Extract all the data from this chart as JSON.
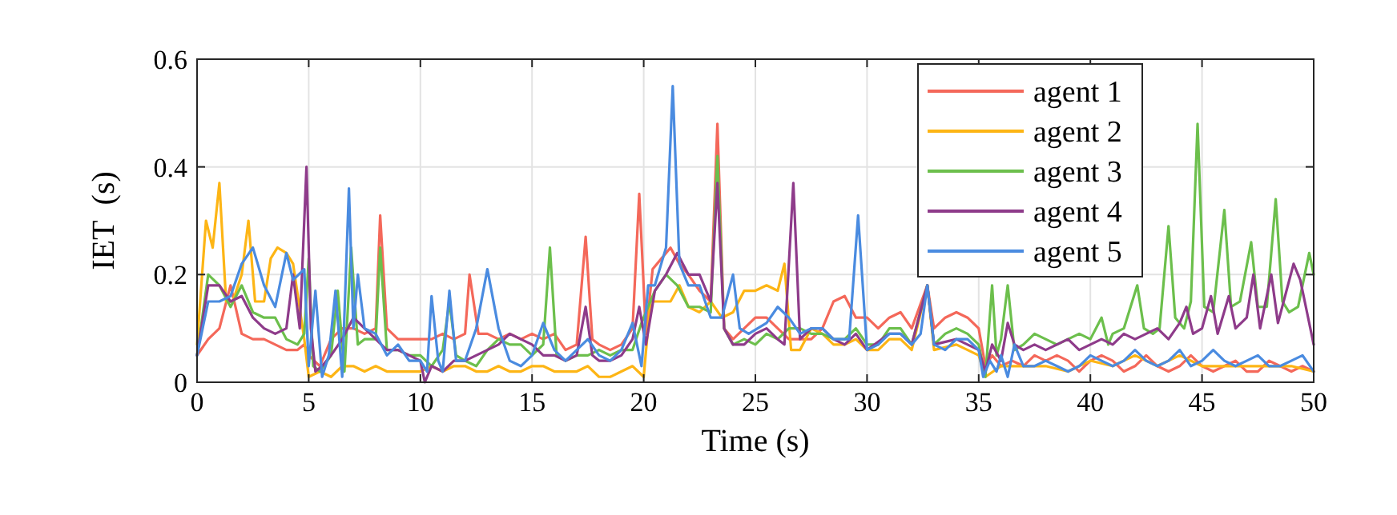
{
  "chart_data": {
    "type": "line",
    "xlabel": "Time (s)",
    "ylabel": "IET  (s)",
    "xlim": [
      0,
      50
    ],
    "ylim": [
      0,
      0.6
    ],
    "xticks": [
      0,
      5,
      10,
      15,
      20,
      25,
      30,
      35,
      40,
      45,
      50
    ],
    "yticks": [
      0,
      0.2,
      0.4,
      0.6
    ],
    "grid": true,
    "legend": "top right",
    "line_style": "solid",
    "marker": "none",
    "series": [
      {
        "name": "agent 1",
        "color": "#f4685a",
        "x": [
          0,
          0.5,
          1,
          1.5,
          2,
          2.5,
          3,
          3.5,
          4,
          4.5,
          4.8,
          5,
          5.5,
          6,
          6.5,
          7,
          7.5,
          8,
          8.2,
          8.5,
          9,
          9.5,
          10,
          10.5,
          11,
          11.5,
          12,
          12.2,
          12.6,
          13,
          13.5,
          14,
          14.5,
          15,
          15.5,
          16,
          16.5,
          17,
          17.4,
          17.7,
          18,
          18.5,
          19,
          19.5,
          19.8,
          20.1,
          20.4,
          20.8,
          21.2,
          21.6,
          22,
          22.5,
          23,
          23.3,
          23.6,
          24,
          24.5,
          25,
          25.5,
          26,
          26.5,
          27,
          27.5,
          28,
          28.5,
          29,
          29.5,
          30,
          30.5,
          31,
          31.5,
          32,
          32.7,
          33,
          33.5,
          34,
          34.5,
          35,
          35.3,
          35.6,
          36,
          36.5,
          37,
          37.5,
          38,
          38.5,
          39,
          39.5,
          40,
          40.5,
          41,
          41.5,
          42,
          42.5,
          43,
          43.5,
          44,
          44.5,
          45,
          45.5,
          46,
          46.5,
          47,
          47.5,
          48,
          48.5,
          49,
          49.5,
          50
        ],
        "values": [
          0.05,
          0.08,
          0.1,
          0.18,
          0.09,
          0.08,
          0.08,
          0.07,
          0.06,
          0.06,
          0.07,
          0.05,
          0.03,
          0.08,
          0.1,
          0.1,
          0.09,
          0.1,
          0.31,
          0.1,
          0.08,
          0.08,
          0.08,
          0.08,
          0.09,
          0.08,
          0.09,
          0.2,
          0.09,
          0.09,
          0.08,
          0.09,
          0.08,
          0.09,
          0.08,
          0.09,
          0.06,
          0.07,
          0.27,
          0.08,
          0.07,
          0.06,
          0.07,
          0.1,
          0.35,
          0.09,
          0.21,
          0.23,
          0.25,
          0.22,
          0.2,
          0.17,
          0.15,
          0.48,
          0.1,
          0.08,
          0.1,
          0.12,
          0.12,
          0.1,
          0.08,
          0.08,
          0.08,
          0.1,
          0.15,
          0.16,
          0.12,
          0.12,
          0.1,
          0.12,
          0.13,
          0.1,
          0.18,
          0.1,
          0.12,
          0.13,
          0.12,
          0.1,
          0.03,
          0.05,
          0.03,
          0.04,
          0.03,
          0.05,
          0.04,
          0.05,
          0.04,
          0.02,
          0.04,
          0.05,
          0.04,
          0.02,
          0.03,
          0.05,
          0.03,
          0.02,
          0.03,
          0.05,
          0.03,
          0.02,
          0.03,
          0.04,
          0.02,
          0.02,
          0.04,
          0.03,
          0.02,
          0.03,
          0.02
        ]
      },
      {
        "name": "agent 2",
        "color": "#fdb515",
        "x": [
          0,
          0.4,
          0.7,
          1,
          1.3,
          1.6,
          2,
          2.3,
          2.6,
          3,
          3.3,
          3.6,
          4,
          4.3,
          4.8,
          5,
          5.5,
          6,
          6.5,
          7,
          7.5,
          8,
          8.5,
          9,
          9.5,
          10,
          10.5,
          11,
          11.5,
          12,
          12.5,
          13,
          13.5,
          14,
          14.5,
          15,
          15.5,
          16,
          16.5,
          17,
          17.5,
          18,
          18.5,
          19,
          19.5,
          20,
          20.3,
          20.8,
          21.2,
          21.6,
          22,
          22.5,
          23,
          23.5,
          24,
          24.5,
          25,
          25.5,
          26,
          26.3,
          26.6,
          27,
          27.5,
          28,
          28.5,
          29,
          29.5,
          30,
          30.5,
          31,
          31.5,
          32,
          32.7,
          33,
          34,
          35,
          35.3,
          36,
          37,
          38,
          39,
          40,
          41,
          42,
          43,
          44,
          45,
          46,
          47,
          48,
          49,
          50
        ],
        "values": [
          0.07,
          0.3,
          0.25,
          0.37,
          0.15,
          0.15,
          0.2,
          0.3,
          0.15,
          0.15,
          0.23,
          0.25,
          0.24,
          0.22,
          0.08,
          0.01,
          0.02,
          0.01,
          0.03,
          0.03,
          0.02,
          0.03,
          0.02,
          0.02,
          0.02,
          0.02,
          0.03,
          0.02,
          0.03,
          0.03,
          0.02,
          0.02,
          0.03,
          0.02,
          0.02,
          0.03,
          0.03,
          0.02,
          0.02,
          0.02,
          0.03,
          0.01,
          0.01,
          0.02,
          0.03,
          0.01,
          0.15,
          0.15,
          0.15,
          0.18,
          0.14,
          0.13,
          0.15,
          0.12,
          0.13,
          0.17,
          0.17,
          0.18,
          0.17,
          0.22,
          0.06,
          0.06,
          0.1,
          0.09,
          0.07,
          0.07,
          0.08,
          0.06,
          0.06,
          0.08,
          0.08,
          0.06,
          0.18,
          0.06,
          0.07,
          0.05,
          0.01,
          0.03,
          0.03,
          0.03,
          0.02,
          0.04,
          0.03,
          0.05,
          0.03,
          0.05,
          0.03,
          0.03,
          0.03,
          0.03,
          0.03,
          0.02
        ]
      },
      {
        "name": "agent 3",
        "color": "#6cbf4c",
        "x": [
          0,
          0.5,
          1,
          1.5,
          2,
          2.5,
          3,
          3.5,
          4,
          4.5,
          4.8,
          5,
          5.2,
          5.5,
          6,
          6.3,
          6.6,
          6.9,
          7.2,
          7.5,
          8,
          8.2,
          8.5,
          9,
          9.5,
          10,
          10.5,
          11,
          11.3,
          11.6,
          12,
          12.5,
          13,
          13.5,
          14,
          14.5,
          15,
          15.5,
          15.8,
          16.1,
          16.5,
          17,
          17.5,
          18,
          18.5,
          19,
          19.5,
          19.9,
          20.2,
          20.5,
          21,
          21.5,
          22,
          22.5,
          23,
          23.3,
          23.6,
          24,
          24.5,
          25,
          25.5,
          26,
          26.5,
          27,
          27.5,
          28,
          28.5,
          29,
          29.5,
          30,
          30.5,
          31,
          31.5,
          32,
          32.7,
          33,
          33.5,
          34,
          34.5,
          35,
          35.3,
          35.6,
          35.8,
          36,
          36.3,
          36.6,
          37,
          37.5,
          38,
          38.5,
          39,
          39.5,
          40,
          40.5,
          40.8,
          41,
          41.5,
          42.1,
          42.4,
          42.8,
          43.1,
          43.5,
          43.8,
          44.2,
          44.5,
          44.8,
          45.1,
          45.5,
          46,
          46.3,
          46.7,
          47.2,
          47.5,
          47.9,
          48.3,
          48.6,
          48.9,
          49.3,
          49.8,
          50
        ],
        "values": [
          0.05,
          0.2,
          0.18,
          0.14,
          0.18,
          0.13,
          0.12,
          0.12,
          0.08,
          0.07,
          0.09,
          0.23,
          0.03,
          0.02,
          0.05,
          0.17,
          0.02,
          0.25,
          0.07,
          0.08,
          0.08,
          0.25,
          0.06,
          0.06,
          0.05,
          0.05,
          0.03,
          0.06,
          0.15,
          0.05,
          0.04,
          0.03,
          0.06,
          0.08,
          0.07,
          0.07,
          0.05,
          0.07,
          0.25,
          0.05,
          0.04,
          0.05,
          0.05,
          0.06,
          0.05,
          0.06,
          0.06,
          0.11,
          0.14,
          0.17,
          0.2,
          0.18,
          0.14,
          0.14,
          0.13,
          0.42,
          0.1,
          0.07,
          0.08,
          0.07,
          0.09,
          0.08,
          0.1,
          0.1,
          0.09,
          0.09,
          0.08,
          0.08,
          0.1,
          0.07,
          0.07,
          0.1,
          0.1,
          0.07,
          0.18,
          0.07,
          0.09,
          0.1,
          0.09,
          0.07,
          0.01,
          0.18,
          0.05,
          0.08,
          0.18,
          0.06,
          0.07,
          0.09,
          0.08,
          0.07,
          0.08,
          0.09,
          0.08,
          0.12,
          0.07,
          0.09,
          0.1,
          0.18,
          0.1,
          0.09,
          0.1,
          0.29,
          0.12,
          0.1,
          0.15,
          0.48,
          0.14,
          0.13,
          0.32,
          0.14,
          0.15,
          0.26,
          0.14,
          0.14,
          0.34,
          0.15,
          0.13,
          0.14,
          0.24,
          0.2
        ]
      },
      {
        "name": "agent 4",
        "color": "#8e3b8a",
        "x": [
          0,
          0.5,
          1,
          1.5,
          2,
          2.5,
          3,
          3.5,
          4,
          4.3,
          4.6,
          4.9,
          5.1,
          5.3,
          5.6,
          6,
          6.5,
          7,
          7.5,
          8,
          8.5,
          9,
          9.5,
          10,
          10.2,
          10.5,
          11,
          11.5,
          12,
          12.5,
          13,
          13.5,
          14,
          14.5,
          15,
          15.5,
          16,
          16.5,
          17,
          17.4,
          17.7,
          18,
          18.5,
          19,
          19.5,
          19.8,
          20.1,
          20.5,
          21,
          21.5,
          22,
          22.5,
          23,
          23.3,
          23.6,
          24,
          24.5,
          25,
          25.5,
          26,
          26.3,
          26.7,
          27,
          27.5,
          28,
          28.5,
          29,
          29.5,
          30,
          31,
          31.5,
          32,
          32.7,
          33,
          34,
          35,
          35.3,
          35.6,
          36,
          36.3,
          36.6,
          37,
          37.5,
          38,
          38.5,
          39,
          39.5,
          40,
          40.5,
          41,
          41.5,
          42,
          42.5,
          43,
          43.5,
          44,
          44.3,
          44.6,
          45,
          45.4,
          45.7,
          46.2,
          46.5,
          47,
          47.3,
          47.6,
          48.1,
          48.4,
          49.1,
          49.4,
          49.7,
          50
        ],
        "values": [
          0.05,
          0.18,
          0.18,
          0.15,
          0.16,
          0.12,
          0.1,
          0.09,
          0.1,
          0.2,
          0.1,
          0.4,
          0.1,
          0.02,
          0.03,
          0.05,
          0.08,
          0.12,
          0.1,
          0.08,
          0.06,
          0.06,
          0.05,
          0.04,
          0,
          0.03,
          0.02,
          0.04,
          0.04,
          0.05,
          0.06,
          0.07,
          0.09,
          0.08,
          0.07,
          0.05,
          0.05,
          0.04,
          0.05,
          0.14,
          0.05,
          0.04,
          0.04,
          0.05,
          0.08,
          0.14,
          0.07,
          0.17,
          0.2,
          0.24,
          0.2,
          0.2,
          0.15,
          0.37,
          0.1,
          0.07,
          0.07,
          0.09,
          0.1,
          0.08,
          0.07,
          0.37,
          0.08,
          0.1,
          0.1,
          0.08,
          0.07,
          0.09,
          0.06,
          0.09,
          0.09,
          0.07,
          0.18,
          0.07,
          0.08,
          0.06,
          0.02,
          0.07,
          0.04,
          0.11,
          0.07,
          0.06,
          0.07,
          0.06,
          0.07,
          0.08,
          0.06,
          0.07,
          0.08,
          0.07,
          0.09,
          0.08,
          0.09,
          0.1,
          0.08,
          0.11,
          0.14,
          0.09,
          0.1,
          0.16,
          0.09,
          0.16,
          0.1,
          0.12,
          0.2,
          0.1,
          0.2,
          0.11,
          0.22,
          0.19,
          0.13,
          0.07
        ]
      },
      {
        "name": "agent 5",
        "color": "#4a8be0",
        "x": [
          0,
          0.5,
          1,
          1.5,
          2,
          2.5,
          3,
          3.5,
          4,
          4.3,
          4.8,
          5,
          5.3,
          5.6,
          5.9,
          6.2,
          6.5,
          6.8,
          7,
          7.2,
          7.5,
          8,
          8.5,
          9,
          9.5,
          10,
          10.3,
          10.5,
          10.8,
          11,
          11.3,
          11.6,
          12,
          12.5,
          13,
          13.5,
          14,
          14.5,
          15,
          15.5,
          16,
          16.5,
          17,
          17.5,
          18,
          18.5,
          19,
          19.5,
          19.9,
          20.2,
          20.5,
          21,
          21.3,
          21.6,
          22,
          22.5,
          23,
          23.5,
          24,
          24.3,
          24.7,
          25.5,
          26,
          26.5,
          27,
          27.5,
          28,
          28.5,
          29.2,
          29.6,
          30,
          30.5,
          31,
          31.5,
          32,
          32.4,
          32.7,
          33,
          33.5,
          34,
          34.5,
          35,
          35.2,
          35.5,
          35.8,
          36,
          36.3,
          36.6,
          37,
          37.5,
          38,
          38.5,
          39,
          39.5,
          40,
          40.5,
          41,
          41.5,
          42,
          42.5,
          43,
          43.5,
          44,
          44.5,
          45,
          45.5,
          46,
          46.5,
          47,
          47.5,
          48,
          48.5,
          49,
          49.5,
          50
        ],
        "values": [
          0.05,
          0.15,
          0.15,
          0.16,
          0.22,
          0.25,
          0.18,
          0.14,
          0.24,
          0.19,
          0.21,
          0.03,
          0.17,
          0.01,
          0.05,
          0.17,
          0.01,
          0.36,
          0.1,
          0.2,
          0.1,
          0.09,
          0.05,
          0.07,
          0.04,
          0.04,
          0.02,
          0.16,
          0.04,
          0.02,
          0.17,
          0.04,
          0.04,
          0.1,
          0.21,
          0.1,
          0.04,
          0.03,
          0.05,
          0.11,
          0.06,
          0.04,
          0.06,
          0.08,
          0.05,
          0.04,
          0.06,
          0.11,
          0.03,
          0.18,
          0.18,
          0.25,
          0.55,
          0.22,
          0.18,
          0.18,
          0.12,
          0.12,
          0.2,
          0.1,
          0.09,
          0.11,
          0.14,
          0.12,
          0.09,
          0.1,
          0.1,
          0.08,
          0.08,
          0.31,
          0.06,
          0.07,
          0.09,
          0.09,
          0.07,
          0.09,
          0.18,
          0.07,
          0.06,
          0.08,
          0.08,
          0.06,
          0.01,
          0.04,
          0.02,
          0.05,
          0.01,
          0.07,
          0.03,
          0.03,
          0.04,
          0.03,
          0.02,
          0.03,
          0.05,
          0.04,
          0.03,
          0.04,
          0.06,
          0.04,
          0.03,
          0.04,
          0.06,
          0.03,
          0.04,
          0.06,
          0.04,
          0.03,
          0.04,
          0.05,
          0.03,
          0.03,
          0.04,
          0.05,
          0.02
        ]
      }
    ]
  }
}
